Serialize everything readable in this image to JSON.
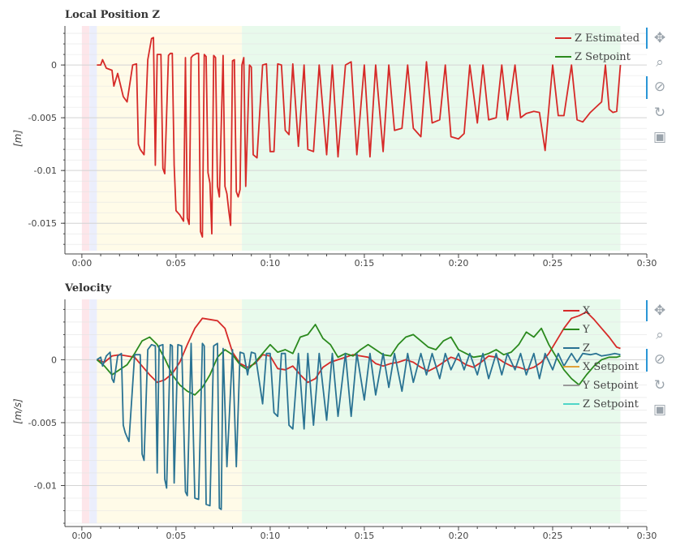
{
  "chart_data": [
    {
      "type": "line",
      "title": "Local Position Z",
      "ylabel": "[m]",
      "xlabel": "",
      "xlim": [
        -0.9,
        30
      ],
      "ylim": [
        -0.0176,
        0.0037
      ],
      "x_ticks": [
        0,
        5,
        10,
        15,
        20,
        25,
        30
      ],
      "x_tick_labels": [
        "0:00",
        "0:05",
        "0:10",
        "0:15",
        "0:20",
        "0:25",
        "0:30"
      ],
      "y_ticks": [
        0,
        -0.005,
        -0.01,
        -0.015
      ],
      "y_tick_labels": [
        "0",
        "-0.005",
        "-0.01",
        "-0.015"
      ],
      "grid": true,
      "legend": "top-right",
      "background_bands": [
        {
          "x0": 0,
          "x1": 0.4,
          "color": "#fde6ea"
        },
        {
          "x0": 0.4,
          "x1": 0.8,
          "color": "#ebeefc"
        },
        {
          "x0": 0.8,
          "x1": 8.5,
          "color": "#fffbe8"
        },
        {
          "x0": 8.5,
          "x1": 28.6,
          "color": "#e8faec"
        }
      ],
      "series": [
        {
          "name": "Z Estimated",
          "color": "#d62a28",
          "x": [
            0.8,
            1.0,
            1.1,
            1.3,
            1.6,
            1.7,
            1.9,
            2.2,
            2.4,
            2.7,
            2.9,
            3.0,
            3.1,
            3.3,
            3.5,
            3.7,
            3.8,
            3.9,
            4.0,
            4.2,
            4.3,
            4.4,
            4.6,
            4.7,
            4.8,
            4.9,
            5.0,
            5.2,
            5.4,
            5.5,
            5.6,
            5.7,
            5.8,
            5.9,
            6.0,
            6.1,
            6.2,
            6.3,
            6.4,
            6.5,
            6.6,
            6.7,
            6.8,
            6.9,
            7.0,
            7.1,
            7.2,
            7.3,
            7.5,
            7.6,
            7.7,
            7.8,
            7.9,
            8.0,
            8.1,
            8.2,
            8.3,
            8.4,
            8.5,
            8.6,
            8.7,
            8.9,
            9.0,
            9.1,
            9.3,
            9.6,
            9.8,
            10.0,
            10.2,
            10.4,
            10.6,
            10.8,
            11.0,
            11.2,
            11.5,
            11.8,
            12.0,
            12.3,
            12.6,
            13.0,
            13.3,
            13.6,
            14.0,
            14.3,
            14.6,
            15.0,
            15.3,
            15.6,
            16.0,
            16.3,
            16.6,
            17.0,
            17.3,
            17.6,
            18.0,
            18.3,
            18.6,
            19.0,
            19.3,
            19.6,
            20.0,
            20.3,
            20.6,
            21.0,
            21.3,
            21.6,
            22.0,
            22.3,
            22.6,
            23.0,
            23.3,
            23.6,
            24.0,
            24.3,
            24.6,
            25.0,
            25.3,
            25.6,
            26.0,
            26.3,
            26.6,
            27.0,
            27.3,
            27.6,
            27.8,
            28.0,
            28.2,
            28.4,
            28.6
          ],
          "y": [
            0.0,
            0.0,
            0.0005,
            -0.0003,
            -0.0005,
            -0.002,
            -0.0008,
            -0.003,
            -0.0035,
            0.0,
            0.0001,
            -0.0075,
            -0.008,
            -0.0085,
            0.0005,
            0.0025,
            0.0026,
            -0.0095,
            0.001,
            0.001,
            -0.0098,
            -0.0103,
            0.0009,
            0.0011,
            0.0011,
            -0.0095,
            -0.0138,
            -0.0142,
            -0.0148,
            0.0007,
            -0.0145,
            -0.0151,
            0.0007,
            0.0009,
            0.001,
            0.0011,
            0.0011,
            -0.0158,
            -0.0163,
            0.001,
            0.0008,
            -0.0102,
            -0.0112,
            -0.016,
            0.0009,
            0.0007,
            -0.0115,
            -0.0125,
            0.0009,
            -0.0115,
            -0.0122,
            -0.0138,
            -0.0152,
            0.0004,
            0.0005,
            -0.012,
            -0.0125,
            -0.0118,
            0.0,
            0.0007,
            -0.0115,
            0.0,
            -0.0002,
            -0.0085,
            -0.0088,
            0.0,
            0.0001,
            -0.0082,
            -0.0082,
            0.0001,
            0.0,
            -0.0062,
            -0.0066,
            0.0001,
            -0.0077,
            0.0,
            -0.008,
            -0.0082,
            0.0,
            -0.0085,
            0.0,
            -0.0087,
            0.0,
            0.0003,
            -0.0085,
            0.0,
            -0.0087,
            0.0,
            -0.0082,
            0.0,
            -0.0062,
            -0.006,
            0.0,
            -0.006,
            -0.0068,
            0.0003,
            -0.0055,
            -0.0052,
            0.0,
            -0.0068,
            -0.007,
            -0.0065,
            0.0,
            -0.0055,
            0.0,
            -0.0052,
            -0.005,
            0.0,
            -0.0052,
            0.0,
            -0.005,
            -0.0046,
            -0.0044,
            -0.0045,
            -0.0081,
            0.0,
            -0.0048,
            -0.0048,
            0.0,
            -0.0052,
            -0.0054,
            -0.0045,
            -0.004,
            -0.0035,
            0.0,
            -0.0042,
            -0.0045,
            -0.0044,
            0.0
          ]
        },
        {
          "name": "Z Setpoint",
          "color": "#2b8a1e",
          "x": [],
          "y": []
        }
      ]
    },
    {
      "type": "line",
      "title": "Velocity",
      "ylabel": "[m/s]",
      "xlabel": "",
      "xlim": [
        -0.9,
        30
      ],
      "ylim": [
        -0.013,
        0.0048
      ],
      "x_ticks": [
        0,
        5,
        10,
        15,
        20,
        25,
        30
      ],
      "x_tick_labels": [
        "0:00",
        "0:05",
        "0:10",
        "0:15",
        "0:20",
        "0:25",
        "0:30"
      ],
      "y_ticks": [
        0,
        -0.005,
        -0.01
      ],
      "y_tick_labels": [
        "0",
        "-0.005",
        "-0.01"
      ],
      "grid": true,
      "legend": "top-right",
      "background_bands": [
        {
          "x0": 0,
          "x1": 0.4,
          "color": "#fde6ea"
        },
        {
          "x0": 0.4,
          "x1": 0.8,
          "color": "#ebeefc"
        },
        {
          "x0": 0.8,
          "x1": 8.5,
          "color": "#fffbe8"
        },
        {
          "x0": 8.5,
          "x1": 28.6,
          "color": "#e8faec"
        }
      ],
      "series": [
        {
          "name": "X",
          "color": "#d62a28",
          "x": [
            0.8,
            1.2,
            1.6,
            2.0,
            2.4,
            2.8,
            3.2,
            3.6,
            4.0,
            4.4,
            4.8,
            5.2,
            5.6,
            6.0,
            6.4,
            6.8,
            7.2,
            7.6,
            8.0,
            8.4,
            8.8,
            9.2,
            9.6,
            10.0,
            10.4,
            10.8,
            11.2,
            11.6,
            12.0,
            12.4,
            12.8,
            13.2,
            13.6,
            14.0,
            14.4,
            14.8,
            15.2,
            15.6,
            16.0,
            16.4,
            16.8,
            17.2,
            17.6,
            18.0,
            18.4,
            18.8,
            19.2,
            19.6,
            20.0,
            20.4,
            20.8,
            21.2,
            21.6,
            22.0,
            22.4,
            22.8,
            23.2,
            23.6,
            24.0,
            24.4,
            24.8,
            25.2,
            25.6,
            26.0,
            26.4,
            26.8,
            27.2,
            27.6,
            28.0,
            28.4,
            28.6
          ],
          "y": [
            0.0,
            -0.0002,
            0.0003,
            0.0004,
            0.0003,
            0.0002,
            -0.0005,
            -0.0012,
            -0.0018,
            -0.0016,
            -0.0011,
            -0.0002,
            0.0012,
            0.0025,
            0.0033,
            0.0032,
            0.0031,
            0.0025,
            0.0006,
            -0.0003,
            -0.0006,
            -0.0003,
            0.0004,
            0.0003,
            -0.0007,
            -0.0008,
            -0.0005,
            -0.0012,
            -0.0018,
            -0.0015,
            -0.0006,
            -0.0002,
            0.0,
            0.0002,
            0.0004,
            0.0003,
            0.0002,
            -0.0003,
            -0.0005,
            -0.0003,
            -0.0002,
            0.0,
            -0.0002,
            -0.0006,
            -0.0009,
            -0.0006,
            -0.0002,
            0.0002,
            0.0,
            -0.0004,
            -0.0006,
            -0.0002,
            0.0003,
            0.0002,
            -0.0002,
            -0.0005,
            -0.0006,
            -0.0008,
            -0.0006,
            -0.0002,
            0.0005,
            0.0015,
            0.0025,
            0.0033,
            0.0035,
            0.0038,
            0.0032,
            0.0025,
            0.0018,
            0.001,
            0.0009
          ]
        },
        {
          "name": "Y",
          "color": "#2b8a1e",
          "x": [
            0.8,
            1.2,
            1.6,
            2.0,
            2.4,
            2.8,
            3.2,
            3.6,
            4.0,
            4.4,
            4.8,
            5.2,
            5.6,
            6.0,
            6.4,
            6.8,
            7.2,
            7.6,
            8.0,
            8.4,
            8.8,
            9.2,
            9.6,
            10.0,
            10.4,
            10.8,
            11.2,
            11.6,
            12.0,
            12.4,
            12.8,
            13.2,
            13.6,
            14.0,
            14.4,
            14.8,
            15.2,
            15.6,
            16.0,
            16.4,
            16.8,
            17.2,
            17.6,
            18.0,
            18.4,
            18.8,
            19.2,
            19.6,
            20.0,
            20.4,
            20.8,
            21.2,
            21.6,
            22.0,
            22.4,
            22.8,
            23.2,
            23.6,
            24.0,
            24.4,
            24.8,
            25.2,
            25.6,
            26.0,
            26.4,
            26.8,
            27.2,
            27.6,
            28.0,
            28.4,
            28.6
          ],
          "y": [
            0.0,
            -0.0005,
            -0.0012,
            -0.0008,
            -0.0004,
            0.0005,
            0.0015,
            0.0018,
            0.0012,
            0.0001,
            -0.0012,
            -0.002,
            -0.0025,
            -0.0028,
            -0.0022,
            -0.0012,
            0.0002,
            0.0008,
            0.0004,
            -0.0004,
            -0.0008,
            -0.0002,
            0.0005,
            0.0012,
            0.0006,
            0.0008,
            0.0005,
            0.0018,
            0.002,
            0.0028,
            0.0017,
            0.0012,
            0.0002,
            0.0005,
            0.0003,
            0.0008,
            0.0012,
            0.0008,
            0.0004,
            0.0003,
            0.0012,
            0.0018,
            0.002,
            0.0015,
            0.001,
            0.0008,
            0.0015,
            0.0018,
            0.0008,
            0.0005,
            0.0002,
            0.0003,
            0.0005,
            0.0008,
            0.0004,
            0.0006,
            0.0012,
            0.0022,
            0.0018,
            0.0025,
            0.0012,
            0.0002,
            -0.0008,
            -0.0015,
            -0.002,
            -0.0012,
            -0.0005,
            0.0,
            0.0002,
            0.0002,
            0.0003
          ]
        },
        {
          "name": "Z",
          "color": "#2a7393",
          "x": [
            0.8,
            1.0,
            1.1,
            1.3,
            1.5,
            1.6,
            1.7,
            1.9,
            2.1,
            2.2,
            2.3,
            2.5,
            2.8,
            3.1,
            3.2,
            3.3,
            3.5,
            3.7,
            3.9,
            4.0,
            4.1,
            4.3,
            4.4,
            4.5,
            4.7,
            4.8,
            4.9,
            5.1,
            5.3,
            5.5,
            5.6,
            5.8,
            6.0,
            6.2,
            6.4,
            6.5,
            6.6,
            6.8,
            7.0,
            7.2,
            7.3,
            7.4,
            7.5,
            7.7,
            8.0,
            8.2,
            8.4,
            8.6,
            8.8,
            9.0,
            9.2,
            9.4,
            9.6,
            9.8,
            10.0,
            10.2,
            10.4,
            10.6,
            10.8,
            11.0,
            11.2,
            11.5,
            11.8,
            12.0,
            12.3,
            12.6,
            13.0,
            13.3,
            13.6,
            14.0,
            14.3,
            14.6,
            15.0,
            15.3,
            15.6,
            16.0,
            16.3,
            16.6,
            17.0,
            17.3,
            17.6,
            18.0,
            18.3,
            18.6,
            19.0,
            19.3,
            19.6,
            20.0,
            20.3,
            20.6,
            21.0,
            21.3,
            21.6,
            22.0,
            22.3,
            22.6,
            23.0,
            23.3,
            23.6,
            24.0,
            24.3,
            24.6,
            25.0,
            25.3,
            25.6,
            26.0,
            26.3,
            26.6,
            27.0,
            27.3,
            27.6,
            28.0,
            28.3,
            28.6
          ],
          "y": [
            0.0,
            0.0002,
            -0.0005,
            0.0003,
            0.0006,
            -0.0015,
            -0.0018,
            0.0003,
            0.0005,
            -0.0052,
            -0.0058,
            -0.0065,
            0.0004,
            0.0004,
            -0.0075,
            -0.008,
            0.0008,
            0.0012,
            0.0011,
            -0.009,
            0.0011,
            0.0012,
            -0.0095,
            -0.0102,
            0.0012,
            0.0011,
            -0.0098,
            0.0012,
            0.0011,
            -0.0105,
            -0.0108,
            0.0013,
            -0.011,
            -0.0111,
            0.0013,
            0.0011,
            -0.0115,
            -0.0116,
            0.0011,
            0.0013,
            -0.0118,
            -0.0119,
            0.0009,
            -0.0085,
            0.0008,
            -0.0085,
            0.0006,
            0.0005,
            -0.0012,
            0.0006,
            0.0005,
            -0.0015,
            -0.0035,
            0.0005,
            0.0005,
            -0.0042,
            -0.0045,
            0.0005,
            0.0005,
            -0.0052,
            -0.0055,
            0.0005,
            -0.0055,
            0.0005,
            -0.0052,
            0.0005,
            -0.0048,
            0.0005,
            -0.0045,
            0.0005,
            -0.0045,
            0.0005,
            -0.0032,
            0.0005,
            -0.0028,
            0.0005,
            -0.0022,
            0.0005,
            -0.0025,
            0.0005,
            -0.0018,
            0.0005,
            -0.0012,
            0.0005,
            -0.0015,
            0.0005,
            -0.0008,
            0.0005,
            -0.0008,
            0.0005,
            -0.0012,
            0.0005,
            -0.0015,
            0.0005,
            -0.0012,
            0.0005,
            -0.0008,
            0.0005,
            -0.0012,
            0.0005,
            -0.0015,
            0.0005,
            -0.0008,
            0.0005,
            -0.0005,
            0.0005,
            -0.0002,
            0.0005,
            0.0004,
            0.0005,
            0.0003,
            0.0004,
            0.0005,
            0.0004
          ]
        },
        {
          "name": "X Setpoint",
          "color": "#e0a23a",
          "x": [],
          "y": []
        },
        {
          "name": "Y Setpoint",
          "color": "#9a9a9a",
          "x": [],
          "y": []
        },
        {
          "name": "Z Setpoint",
          "color": "#4fd6c8",
          "x": [],
          "y": []
        }
      ]
    }
  ],
  "toolbar_tools": [
    "pan-icon",
    "box-zoom-icon",
    "wheel-zoom-icon",
    "reset-icon",
    "save-icon"
  ]
}
